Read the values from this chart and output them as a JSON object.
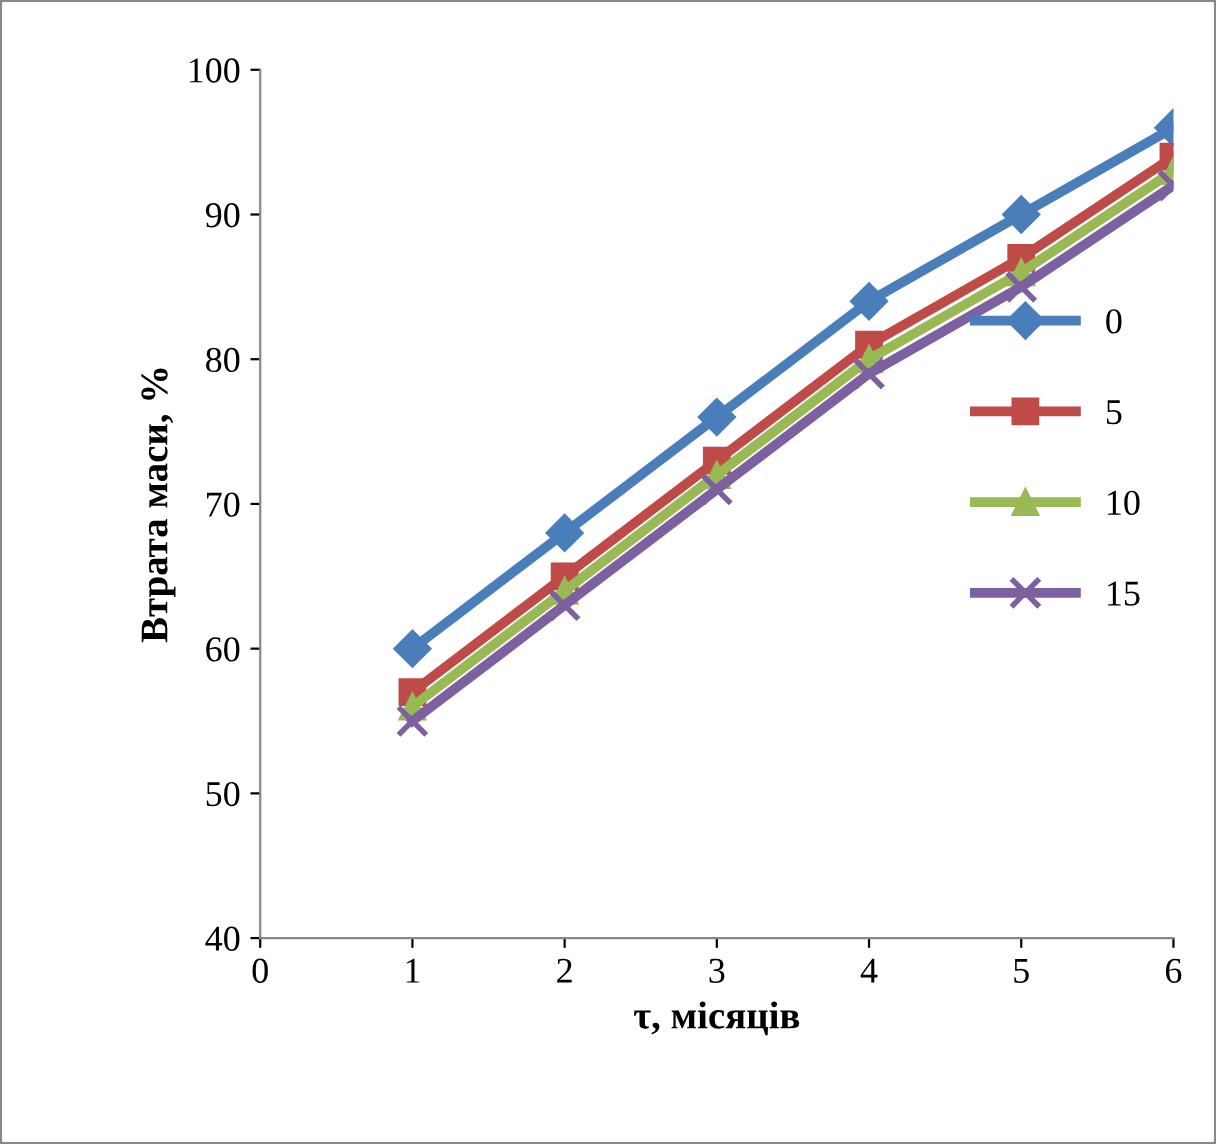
{
  "chart_data": {
    "type": "line",
    "xlabel": "τ, місяців",
    "ylabel": "Втрата маси, %",
    "x": [
      1,
      2,
      3,
      4,
      5,
      6
    ],
    "series": [
      {
        "name": "0",
        "color": "#4a7ebb",
        "marker": "diamond",
        "values": [
          60,
          68,
          76,
          84,
          90,
          96
        ]
      },
      {
        "name": "5",
        "color": "#be4b48",
        "marker": "square",
        "values": [
          57,
          65,
          73,
          81,
          87,
          94
        ]
      },
      {
        "name": "10",
        "color": "#98b954",
        "marker": "triangle",
        "values": [
          56,
          64,
          72,
          80,
          86,
          93
        ]
      },
      {
        "name": "15",
        "color": "#7d60a0",
        "marker": "cross",
        "values": [
          55,
          63,
          71,
          79,
          85,
          92
        ]
      }
    ],
    "xlim": [
      0,
      6
    ],
    "xticks": [
      0,
      1,
      2,
      3,
      4,
      5,
      6
    ],
    "ylim": [
      40,
      100
    ],
    "yticks": [
      40,
      50,
      60,
      70,
      80,
      90,
      100
    ],
    "grid": false,
    "legend": "right",
    "line_style": "solid"
  }
}
